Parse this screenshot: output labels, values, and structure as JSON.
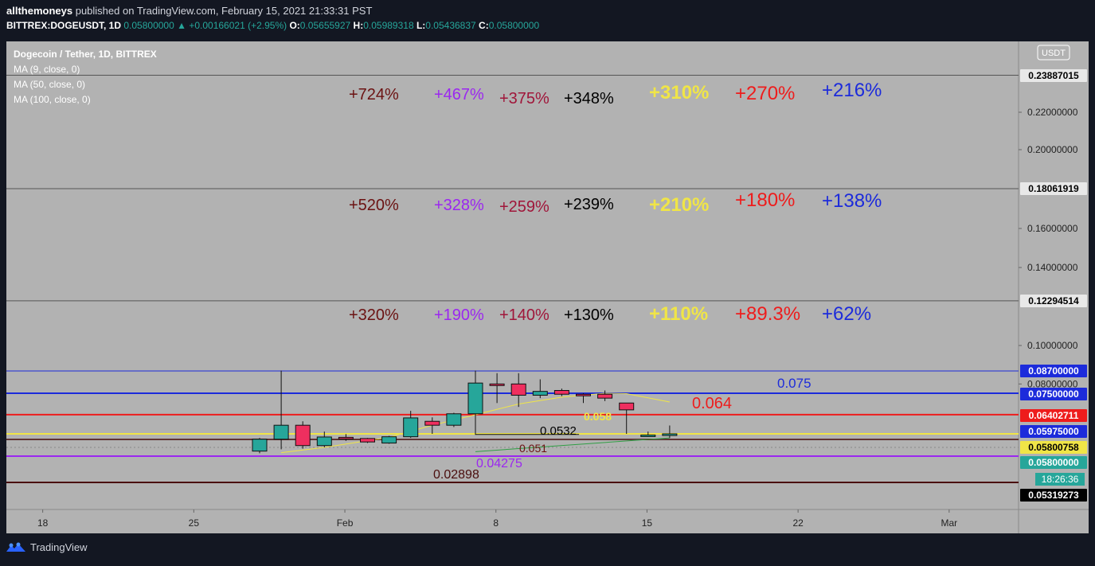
{
  "header": {
    "publisher": "allthemoneys",
    "published_text": "published on TradingView.com, February 15, 2021 21:33:31 PST"
  },
  "infobar": {
    "symbol": "BITTREX:DOGEUSDT, 1D",
    "last": "0.05800000",
    "arrow": "▲",
    "change": "+0.00166021 (+2.95%)",
    "o_label": "O:",
    "o": "0.05655927",
    "h_label": "H:",
    "h": "0.05989318",
    "l_label": "L:",
    "l": "0.05436837",
    "c_label": "C:",
    "c": "0.05800000"
  },
  "legend": {
    "title": "Dogecoin / Tether, 1D, BITTREX",
    "indicators": [
      "MA (9, close, 0)",
      "MA (50, close, 0)",
      "MA (100, close, 0)"
    ]
  },
  "currency_badge": "USDT",
  "footer": {
    "brand": "TradingView"
  },
  "colors": {
    "background": "#131722",
    "plot_bg": "#b2b2b2",
    "up": "#26a69a",
    "down": "#ef2f5f",
    "dark_red": "#6b1212",
    "purple": "#9b27f0",
    "red": "#ee1c1c",
    "yellow": "#f0e547",
    "blue": "#1c2bdb"
  },
  "chart_data": {
    "type": "candlestick",
    "x_ticks": [
      "18",
      "25",
      "Feb",
      "8",
      "15",
      "22",
      "Mar"
    ],
    "y_ticks": [
      "0.22000000",
      "0.20000000",
      "0.16000000",
      "0.14000000",
      "0.10000000",
      "0.08000000"
    ],
    "ylim": [
      0.05,
      0.245
    ],
    "candles": [
      {
        "o": 0.0475,
        "h": 0.0545,
        "l": 0.0455,
        "c": 0.0534
      },
      {
        "o": 0.0534,
        "h": 0.0872,
        "l": 0.0492,
        "c": 0.06
      },
      {
        "o": 0.06,
        "h": 0.0615,
        "l": 0.0498,
        "c": 0.0515
      },
      {
        "o": 0.0515,
        "h": 0.0585,
        "l": 0.051,
        "c": 0.0553
      },
      {
        "o": 0.055,
        "h": 0.0578,
        "l": 0.0528,
        "c": 0.054
      },
      {
        "o": 0.054,
        "h": 0.0545,
        "l": 0.0522,
        "c": 0.0525
      },
      {
        "o": 0.0522,
        "h": 0.0562,
        "l": 0.052,
        "c": 0.0555
      },
      {
        "o": 0.0555,
        "h": 0.066,
        "l": 0.0545,
        "c": 0.0628
      },
      {
        "o": 0.0615,
        "h": 0.063,
        "l": 0.058,
        "c": 0.06
      },
      {
        "o": 0.06,
        "h": 0.065,
        "l": 0.0595,
        "c": 0.0645
      },
      {
        "o": 0.0645,
        "h": 0.0872,
        "l": 0.058,
        "c": 0.0805
      },
      {
        "o": 0.08,
        "h": 0.0858,
        "l": 0.07,
        "c": 0.0795
      },
      {
        "o": 0.08,
        "h": 0.0858,
        "l": 0.068,
        "c": 0.074
      },
      {
        "o": 0.074,
        "h": 0.0825,
        "l": 0.0725,
        "c": 0.076
      },
      {
        "o": 0.0765,
        "h": 0.0775,
        "l": 0.0735,
        "c": 0.0745
      },
      {
        "o": 0.0745,
        "h": 0.075,
        "l": 0.07,
        "c": 0.074
      },
      {
        "o": 0.0745,
        "h": 0.0765,
        "l": 0.071,
        "c": 0.0725
      },
      {
        "o": 0.07,
        "h": 0.07,
        "l": 0.058,
        "c": 0.0665
      },
      {
        "o": 0.0565,
        "h": 0.0585,
        "l": 0.0555,
        "c": 0.057
      },
      {
        "o": 0.0566,
        "h": 0.0599,
        "l": 0.0544,
        "c": 0.058
      }
    ],
    "moving_averages": [
      {
        "name": "MA (9, close, 0)",
        "color": "#f0e547",
        "points": [
          [
            1,
            0.046
          ],
          [
            3,
            0.051
          ],
          [
            6,
            0.055
          ],
          [
            8,
            0.06
          ],
          [
            10,
            0.064
          ],
          [
            12,
            0.0695
          ],
          [
            14,
            0.073
          ],
          [
            16,
            0.075
          ],
          [
            17,
            0.0748
          ],
          [
            19,
            0.0705
          ]
        ]
      },
      {
        "name": "MA (50, close, 0)",
        "color": "#2f9e44",
        "points": [
          [
            10,
            0.047
          ],
          [
            19,
            0.0545
          ]
        ]
      }
    ],
    "horizontal_levels": [
      {
        "price": 0.23887015,
        "label": "0.23887015",
        "color": "#555555",
        "width": 1,
        "tag_bg": "#e8e8e8",
        "tag_fg": "#000000"
      },
      {
        "price": 0.18061919,
        "label": "0.18061919",
        "color": "#555555",
        "width": 1,
        "tag_bg": "#e8e8e8",
        "tag_fg": "#000000"
      },
      {
        "price": 0.12294514,
        "label": "0.12294514",
        "color": "#555555",
        "width": 1,
        "tag_bg": "#e8e8e8",
        "tag_fg": "#000000"
      },
      {
        "price": 0.087,
        "label": "0.08700000",
        "color": "#1c2bdb",
        "width": 1,
        "tag_bg": "#1c2bdb",
        "tag_fg": "#ffffff"
      },
      {
        "price": 0.075,
        "label": "0.07500000",
        "color": "#1c2bdb",
        "width": 2,
        "tag_bg": "#1c2bdb",
        "tag_fg": "#ffffff"
      },
      {
        "price": 0.06402711,
        "label": "0.06402711",
        "color": "#ee1c1c",
        "width": 2,
        "tag_bg": "#ee1c1c",
        "tag_fg": "#ffffff"
      },
      {
        "price": 0.05975,
        "label": "0.05975000",
        "color": "#1c2bdb",
        "width": 0,
        "tag_bg": "#1c2bdb",
        "tag_fg": "#ffffff"
      },
      {
        "price": 0.058,
        "label": "",
        "color": "#f0e547",
        "width": 2,
        "tag_bg": "",
        "tag_fg": ""
      },
      {
        "price": 0.05800758,
        "label": "0.05800758",
        "color": "#f0e547",
        "width": 0,
        "tag_bg": "#f0e547",
        "tag_fg": "#000000"
      },
      {
        "price": 0.0532,
        "label": "",
        "color": "#6b1212",
        "width": 2,
        "tag_bg": "",
        "tag_fg": ""
      },
      {
        "price": 0.051,
        "label": "",
        "color": "#888888",
        "width": 1,
        "dash": true,
        "tag_bg": "",
        "tag_fg": ""
      },
      {
        "price": 0.058,
        "label": "0.05800000",
        "color": "#26a69a",
        "width": 0,
        "tag_bg": "#26a69a",
        "tag_fg": "#ffffff"
      },
      {
        "price": 0.04275,
        "label": "",
        "color": "#9b27f0",
        "width": 2,
        "tag_bg": "",
        "tag_fg": ""
      },
      {
        "price": 0.02898,
        "label": "",
        "color": "#4a0d0d",
        "width": 2,
        "tag_bg": "",
        "tag_fg": ""
      },
      {
        "price": 0.05319273,
        "label": "0.05319273",
        "color": "#555555",
        "width": 1,
        "tag_bg": "#000000",
        "tag_fg": "#ffffff"
      }
    ],
    "countdown": {
      "text": "18:26:36",
      "color": "#26a69a"
    },
    "level_labels": [
      {
        "text": "0.075",
        "color": "#1c2bdb",
        "at": 0.075
      },
      {
        "text": "0.064",
        "color": "#ee1c1c",
        "at": 0.064
      },
      {
        "text": "0.058",
        "color": "#f0e547",
        "at": 0.058
      },
      {
        "text": "0.0532",
        "color": "#000000",
        "at": 0.0532
      },
      {
        "text": "0.051",
        "color": "#6b1212",
        "at": 0.051
      },
      {
        "text": "0.04275",
        "color": "#9b27f0",
        "at": 0.04275
      },
      {
        "text": "0.02898",
        "color": "#4a0d0d",
        "at": 0.02898
      }
    ],
    "percent_table": {
      "colors": [
        "#6b1212",
        "#9b27f0",
        "#a0163a",
        "#000000",
        "#f0e547",
        "#ee1c1c",
        "#1c2bdb"
      ],
      "rows": [
        [
          "+724%",
          "+467%",
          "+375%",
          "+348%",
          "+310%",
          "+270%",
          "+216%"
        ],
        [
          "+520%",
          "+328%",
          "+259%",
          "+239%",
          "+210%",
          "+180%",
          "+138%"
        ],
        [
          "+320%",
          "+190%",
          "+140%",
          "+130%",
          "+110%",
          "+89.3%",
          "+62%"
        ]
      ]
    }
  }
}
